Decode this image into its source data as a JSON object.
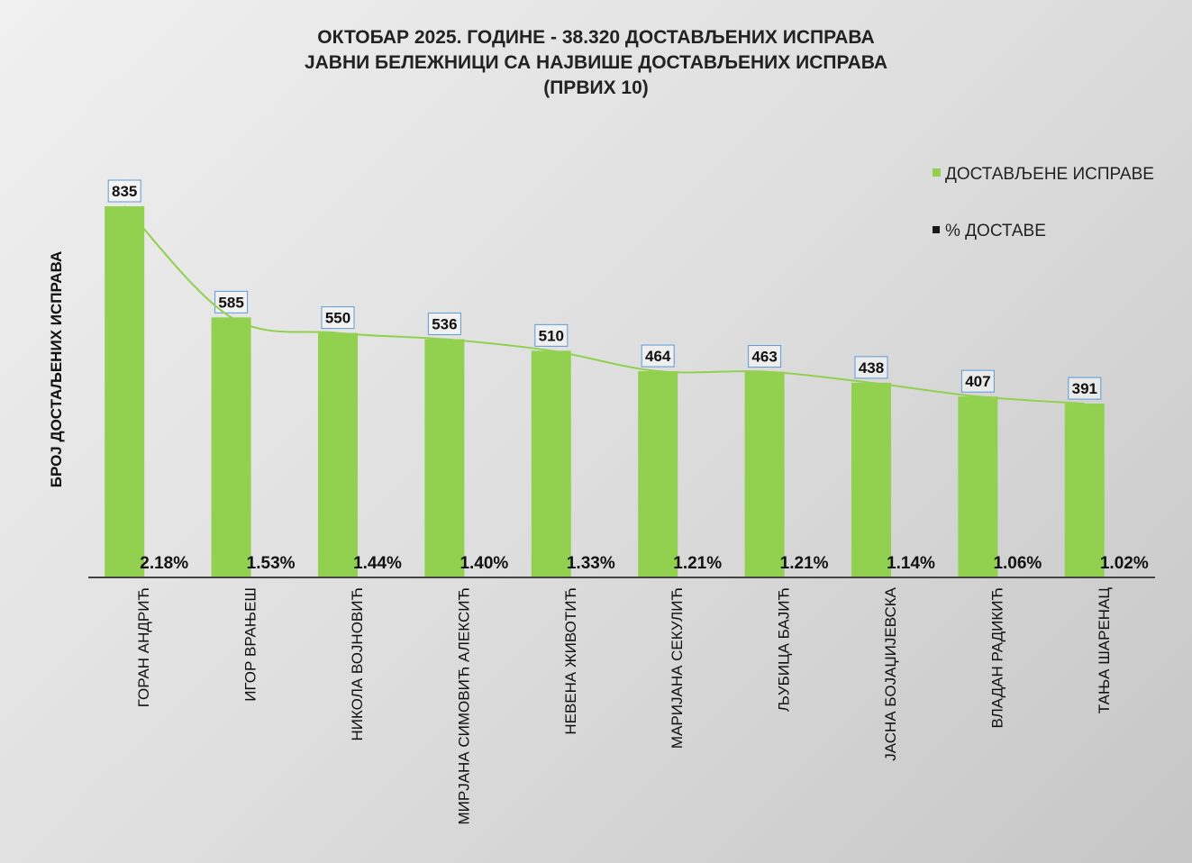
{
  "chart_data": {
    "type": "bar",
    "title": [
      "ОКТОБАР 2025. ГОДИНЕ - 38.320  ДОСТАВЉЕНИХ  ИСПРАВА",
      "ЈАВНИ БЕЛЕЖНИЦИ СА НАЈВИШЕ ДОСТАВЉЕНИХ  ИСПРАВА",
      "(ПРВИХ 10)"
    ],
    "ylabel": "БРОЈ ДОСТАЉЕНИХ ИСПРАВА",
    "xlabel": "",
    "categories": [
      "ГОРАН АНДРИЋ",
      "ИГОР ВРАЊЕШ",
      "НИКОЛА ВОЈНОВИЋ",
      "МИРЈАНА СИМОВИЋ АЛЕКСИЋ",
      "НЕВЕНА ЖИВОТИЋ",
      "МАРИЈАНА СЕКУЛИЋ",
      "ЉУБИЦА БАЈИЋ",
      "ЈАСНА БОЈАЏИЈЕВСКА",
      "ВЛАДАН РАДИКИЋ",
      "ТАЊА ШАРЕНАЦ"
    ],
    "series": [
      {
        "name": "ДОСТАВЉЕНЕ  ИСПРАВЕ",
        "color": "#92d050",
        "values": [
          835,
          585,
          550,
          536,
          510,
          464,
          463,
          438,
          407,
          391
        ],
        "labels": [
          "835",
          "585",
          "550",
          "536",
          "510",
          "464",
          "463",
          "438",
          "407",
          "391"
        ]
      },
      {
        "name": "% ДОСТАВЕ",
        "color": "#1a1a1a",
        "values": [
          2.18,
          1.53,
          1.44,
          1.4,
          1.33,
          1.21,
          1.21,
          1.14,
          1.06,
          1.02
        ],
        "labels": [
          "2.18%",
          "1.53%",
          "1.44%",
          "1.40%",
          "1.33%",
          "1.21%",
          "1.21%",
          "1.14%",
          "1.06%",
          "1.02%"
        ]
      }
    ],
    "trendline": true,
    "legend_position": "top-right",
    "grid": false,
    "ylim": [
      0,
      835
    ]
  }
}
